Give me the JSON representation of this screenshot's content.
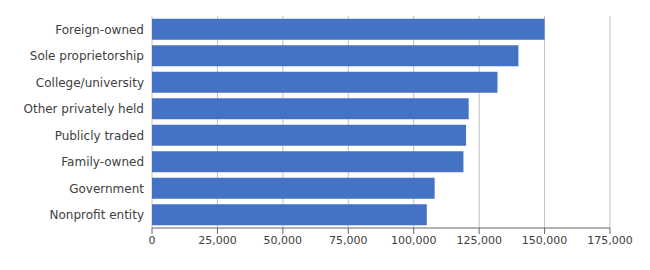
{
  "chart_data": {
    "type": "bar",
    "orientation": "horizontal",
    "categories": [
      "Nonprofit entity",
      "Government",
      "Family-owned",
      "Publicly traded",
      "Other privately held",
      "College/university",
      "Sole proprietorship",
      "Foreign-owned"
    ],
    "values": [
      105000,
      108000,
      119000,
      120000,
      121000,
      132000,
      140000,
      150000
    ],
    "color": "#4472C4",
    "xlim": [
      0,
      175000
    ],
    "xticks": [
      0,
      {
        "value": 25000,
        "label": "25,000"
      },
      {
        "value": 50000,
        "label": "50,000"
      },
      {
        "value": 75000,
        "label": "75,000"
      },
      {
        "value": 100000,
        "label": "100,000"
      },
      {
        "value": 125000,
        "label": "125,000"
      },
      {
        "value": 150000,
        "label": "150,000"
      },
      {
        "value": 175000,
        "label": "175,000"
      }
    ],
    "grid": true
  }
}
